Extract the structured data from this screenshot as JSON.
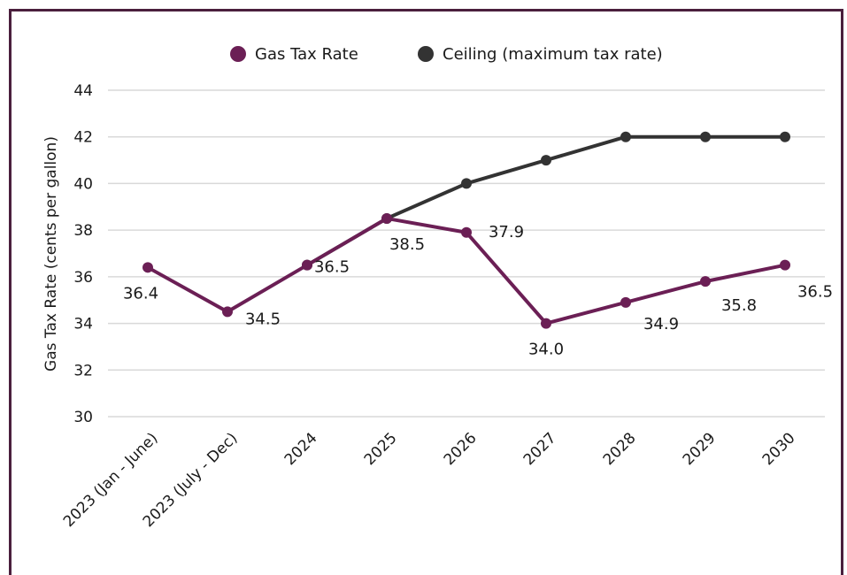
{
  "chart_data": {
    "type": "line",
    "title": "",
    "xlabel": "",
    "ylabel": "Gas Tax Rate (cents per gallon)",
    "ylim": [
      30,
      44
    ],
    "yticks": [
      30,
      32,
      34,
      36,
      38,
      40,
      42,
      44
    ],
    "grid": true,
    "legend_position": "top",
    "categories": [
      "2023 (Jan - June)",
      "2023 (July - Dec)",
      "2024",
      "2025",
      "2026",
      "2027",
      "2028",
      "2029",
      "2030"
    ],
    "series": [
      {
        "name": "Gas Tax Rate",
        "color": "#6b1f55",
        "values": [
          36.4,
          34.5,
          36.5,
          38.5,
          37.9,
          34.0,
          34.9,
          35.8,
          36.5
        ],
        "labels": [
          "36.4",
          "34.5",
          "36.5",
          "38.5",
          "37.9",
          "34.0",
          "34.9",
          "35.8",
          "36.5"
        ]
      },
      {
        "name": "Ceiling (maximum tax rate)",
        "color": "#333333",
        "values": [
          null,
          null,
          36.5,
          38.5,
          40,
          41,
          42,
          42,
          42
        ]
      }
    ]
  }
}
